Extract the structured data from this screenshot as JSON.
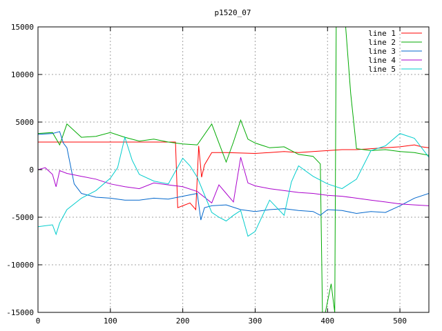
{
  "chart_data": {
    "type": "line",
    "title": "p1520_07",
    "xlabel": "",
    "ylabel": "",
    "xlim": [
      0,
      540
    ],
    "ylim": [
      -15000,
      15000
    ],
    "grid": true,
    "legend_placement": "top-right",
    "xticks": [
      0,
      100,
      200,
      300,
      400,
      500
    ],
    "yticks": [
      -15000,
      -10000,
      -5000,
      0,
      5000,
      10000,
      15000
    ],
    "series": [
      {
        "name": "line 1",
        "color": "#ff0000",
        "x": [
          0,
          40,
          80,
          120,
          160,
          190,
          193,
          200,
          210,
          218,
          222,
          226,
          230,
          240,
          260,
          300,
          320,
          340,
          360,
          380,
          400,
          420,
          440,
          460,
          480,
          500,
          510,
          520,
          530,
          540
        ],
        "y": [
          2900,
          2900,
          2900,
          2900,
          2900,
          2900,
          -4000,
          -3800,
          -3500,
          -4200,
          2500,
          -800,
          500,
          1800,
          1800,
          1700,
          1800,
          1900,
          1800,
          1900,
          2000,
          2100,
          2100,
          2200,
          2300,
          2400,
          2500,
          2600,
          2400,
          2300
        ]
      },
      {
        "name": "line 2",
        "color": "#00aa00",
        "x": [
          0,
          20,
          30,
          40,
          60,
          80,
          100,
          120,
          140,
          160,
          180,
          200,
          220,
          240,
          250,
          260,
          270,
          280,
          290,
          300,
          320,
          340,
          360,
          380,
          390,
          393,
          397,
          405,
          410,
          412,
          418,
          425,
          432,
          440,
          460,
          480,
          500,
          520,
          540
        ],
        "y": [
          3800,
          3900,
          2600,
          4800,
          3400,
          3500,
          3900,
          3400,
          3000,
          3200,
          2900,
          2700,
          2600,
          4800,
          2800,
          800,
          2900,
          5200,
          3200,
          2800,
          2300,
          2400,
          1600,
          1400,
          600,
          -15000,
          -15000,
          -12000,
          -15000,
          15000,
          15000,
          15000,
          8000,
          2200,
          2000,
          2100,
          1900,
          1800,
          1500
        ]
      },
      {
        "name": "line 3",
        "color": "#0066cc",
        "x": [
          0,
          20,
          30,
          35,
          40,
          50,
          60,
          80,
          100,
          120,
          140,
          160,
          180,
          200,
          220,
          225,
          230,
          240,
          260,
          280,
          300,
          320,
          340,
          360,
          380,
          390,
          400,
          420,
          440,
          460,
          480,
          500,
          520,
          540
        ],
        "y": [
          3700,
          3800,
          4000,
          2800,
          2300,
          -1500,
          -2500,
          -2900,
          -3000,
          -3200,
          -3200,
          -3000,
          -3100,
          -2800,
          -2500,
          -5300,
          -4000,
          -3800,
          -3700,
          -4200,
          -4400,
          -4200,
          -4100,
          -4300,
          -4400,
          -4800,
          -4200,
          -4300,
          -4600,
          -4400,
          -4500,
          -3800,
          -3000,
          -2500
        ]
      },
      {
        "name": "line 4",
        "color": "#aa00cc",
        "x": [
          0,
          10,
          20,
          25,
          30,
          40,
          60,
          80,
          100,
          120,
          140,
          160,
          180,
          200,
          220,
          240,
          250,
          260,
          270,
          280,
          290,
          300,
          320,
          340,
          360,
          380,
          400,
          420,
          440,
          460,
          480,
          500,
          520,
          540
        ],
        "y": [
          0,
          200,
          -500,
          -1800,
          -100,
          -400,
          -700,
          -1000,
          -1500,
          -1800,
          -2000,
          -1400,
          -1600,
          -1800,
          -2300,
          -3500,
          -1600,
          -2500,
          -3400,
          1300,
          -1400,
          -1700,
          -2000,
          -2200,
          -2400,
          -2500,
          -2700,
          -2800,
          -3000,
          -3200,
          -3400,
          -3600,
          -3700,
          -3800
        ]
      },
      {
        "name": "line 5",
        "color": "#00cccc",
        "x": [
          0,
          20,
          25,
          30,
          40,
          60,
          80,
          100,
          110,
          120,
          130,
          140,
          160,
          180,
          200,
          210,
          220,
          240,
          250,
          260,
          270,
          280,
          290,
          300,
          320,
          340,
          350,
          360,
          380,
          400,
          420,
          440,
          460,
          480,
          500,
          520,
          540
        ],
        "y": [
          -6000,
          -5800,
          -6800,
          -5600,
          -4200,
          -3000,
          -2200,
          -900,
          200,
          3400,
          1000,
          -500,
          -1200,
          -1500,
          1200,
          400,
          -800,
          -4500,
          -5000,
          -5400,
          -4800,
          -4300,
          -7000,
          -6500,
          -3200,
          -4800,
          -1300,
          400,
          -700,
          -1500,
          -2000,
          -1000,
          2000,
          2500,
          3800,
          3300,
          1300
        ]
      }
    ]
  }
}
